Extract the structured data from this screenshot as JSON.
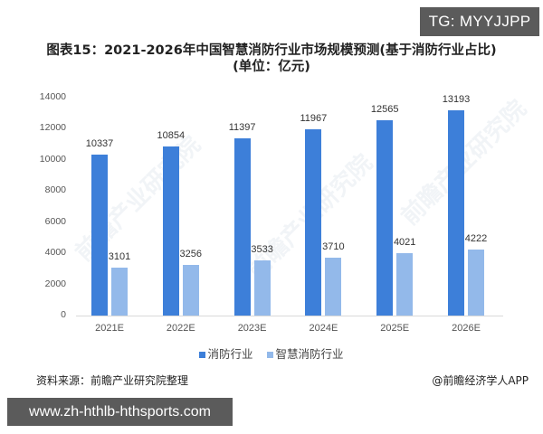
{
  "badge_top": "TG: MYYJJPP",
  "title": "图表15：2021-2026年中国智慧消防行业市场规模预测(基于消防行业占比)",
  "subtitle": "(单位：亿元)",
  "y_ticks": [
    "14000",
    "12000",
    "10000",
    "8000",
    "6000",
    "4000",
    "2000",
    "0"
  ],
  "categories": [
    "2021E",
    "2022E",
    "2023E",
    "2024E",
    "2025E",
    "2026E"
  ],
  "series": [
    {
      "name": "消防行业",
      "color": "#3d7fd9",
      "values": [
        10337,
        10854,
        11397,
        11967,
        12565,
        13193
      ],
      "labels": [
        "10337",
        "10854",
        "11397",
        "11967",
        "12565",
        "13193"
      ]
    },
    {
      "name": "智慧消防行业",
      "color": "#93b9ea",
      "values": [
        3101,
        3256,
        3533,
        3710,
        4021,
        4222
      ],
      "labels": [
        "3101",
        "3256",
        "3533",
        "3710",
        "4021",
        "4222"
      ]
    }
  ],
  "legend": {
    "item0": "消防行业",
    "item1": "智慧消防行业"
  },
  "source": "资料来源：前瞻产业研究院整理",
  "credit": "@前瞻经济学人APP",
  "badge_bottom": "www.zh-hthlb-hthsports.com",
  "watermark": "前瞻产业研究院",
  "chart_data": {
    "type": "bar",
    "title": "图表15：2021-2026年中国智慧消防行业市场规模预测(基于消防行业占比)",
    "subtitle": "(单位：亿元)",
    "categories": [
      "2021E",
      "2022E",
      "2023E",
      "2024E",
      "2025E",
      "2026E"
    ],
    "series": [
      {
        "name": "消防行业",
        "values": [
          10337,
          10854,
          11397,
          11967,
          12565,
          13193
        ]
      },
      {
        "name": "智慧消防行业",
        "values": [
          3101,
          3256,
          3533,
          3710,
          4021,
          4222
        ]
      }
    ],
    "xlabel": "",
    "ylabel": "",
    "ylim": [
      0,
      14000
    ],
    "yticks": [
      0,
      2000,
      4000,
      6000,
      8000,
      10000,
      12000,
      14000
    ],
    "grid": false,
    "legend_position": "bottom",
    "data_labels": true
  }
}
